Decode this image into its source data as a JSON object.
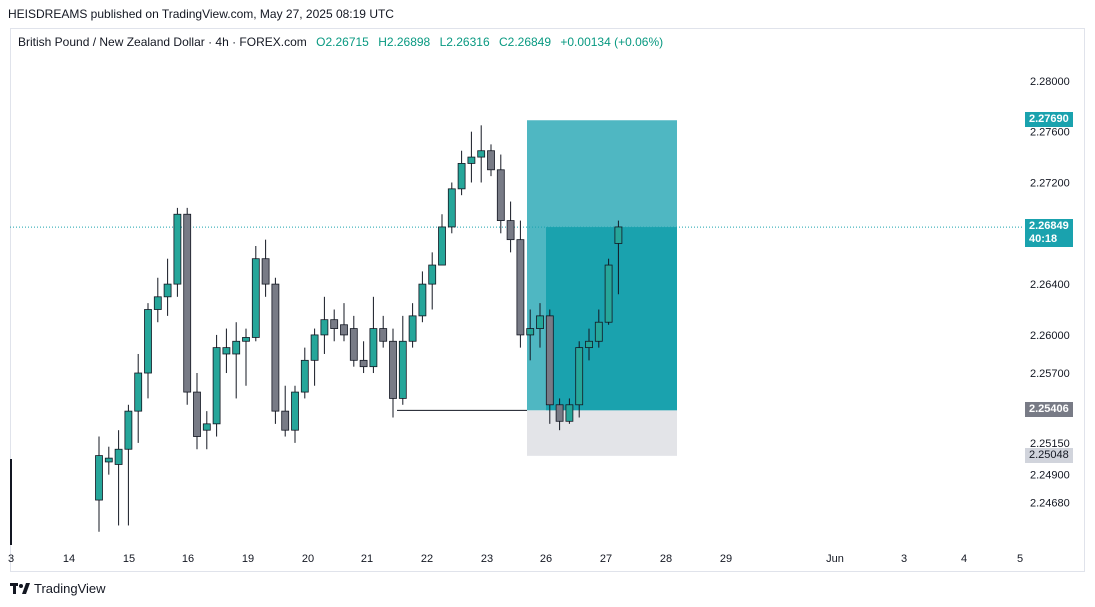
{
  "caption": "HEISDREAMS published on TradingView.com, May 27, 2025 08:19 UTC",
  "legend": {
    "symbol": "British Pound / New Zealand Dollar · 4h · FOREX.com",
    "open": "O2.26715",
    "high": "H2.26898",
    "low": "L2.26316",
    "close": "C2.26849",
    "change": "+0.00134 (+0.06%)"
  },
  "footer": {
    "brand": "TradingView",
    "logo_icon": "tradingview-logo-icon"
  },
  "price_labels": {
    "target": "2.27690",
    "current": "2.26849",
    "countdown": "40:18",
    "entry": "2.25406",
    "stop": "2.25048"
  },
  "colors": {
    "up": "#26a69a",
    "down": "#787b86",
    "target_zone": "#4fb7c2",
    "target_zone_inner": "#1aa2ae",
    "stop_zone": "#e3e4e8",
    "label_teal": "#1aa2ae",
    "label_gray": "#787b86",
    "label_light": "#d1d4dc"
  },
  "chart_data": {
    "type": "candlestick",
    "title": "British Pound / New Zealand Dollar · 4h · FOREX.com",
    "ylim": [
      2.2448,
      2.2818
    ],
    "yticks": [
      "2.28000",
      "2.27600",
      "2.27200",
      "2.26800",
      "2.26400",
      "2.26000",
      "2.25700",
      "2.25400",
      "2.25150",
      "2.24900",
      "2.24680"
    ],
    "xticks": [
      "3",
      "14",
      "15",
      "16",
      "19",
      "20",
      "21",
      "22",
      "23",
      "26",
      "27",
      "28",
      "29",
      "Jun",
      "3",
      "4",
      "5"
    ],
    "grid": false,
    "candles": [
      {
        "o": 2.247,
        "h": 2.252,
        "l": 2.2445,
        "c": 2.2505
      },
      {
        "o": 2.25,
        "h": 2.2512,
        "l": 2.249,
        "c": 2.2503
      },
      {
        "o": 2.2498,
        "h": 2.2525,
        "l": 2.245,
        "c": 2.251
      },
      {
        "o": 2.251,
        "h": 2.2545,
        "l": 2.245,
        "c": 2.254
      },
      {
        "o": 2.254,
        "h": 2.2585,
        "l": 2.2515,
        "c": 2.257
      },
      {
        "o": 2.257,
        "h": 2.2625,
        "l": 2.255,
        "c": 2.262
      },
      {
        "o": 2.262,
        "h": 2.2645,
        "l": 2.261,
        "c": 2.263
      },
      {
        "o": 2.263,
        "h": 2.266,
        "l": 2.2615,
        "c": 2.264
      },
      {
        "o": 2.264,
        "h": 2.27,
        "l": 2.263,
        "c": 2.2695
      },
      {
        "o": 2.2695,
        "h": 2.27,
        "l": 2.2545,
        "c": 2.2555
      },
      {
        "o": 2.2555,
        "h": 2.257,
        "l": 2.251,
        "c": 2.252
      },
      {
        "o": 2.2525,
        "h": 2.254,
        "l": 2.251,
        "c": 2.253
      },
      {
        "o": 2.253,
        "h": 2.26,
        "l": 2.252,
        "c": 2.259
      },
      {
        "o": 2.2585,
        "h": 2.2605,
        "l": 2.257,
        "c": 2.259
      },
      {
        "o": 2.2585,
        "h": 2.261,
        "l": 2.255,
        "c": 2.2595
      },
      {
        "o": 2.2595,
        "h": 2.2605,
        "l": 2.256,
        "c": 2.2598
      },
      {
        "o": 2.2598,
        "h": 2.267,
        "l": 2.2595,
        "c": 2.266
      },
      {
        "o": 2.266,
        "h": 2.2675,
        "l": 2.263,
        "c": 2.264
      },
      {
        "o": 2.264,
        "h": 2.2645,
        "l": 2.253,
        "c": 2.254
      },
      {
        "o": 2.254,
        "h": 2.256,
        "l": 2.252,
        "c": 2.2525
      },
      {
        "o": 2.2525,
        "h": 2.256,
        "l": 2.2515,
        "c": 2.2555
      },
      {
        "o": 2.2555,
        "h": 2.259,
        "l": 2.255,
        "c": 2.258
      },
      {
        "o": 2.258,
        "h": 2.2605,
        "l": 2.256,
        "c": 2.26
      },
      {
        "o": 2.26,
        "h": 2.263,
        "l": 2.2585,
        "c": 2.2612
      },
      {
        "o": 2.2612,
        "h": 2.262,
        "l": 2.2595,
        "c": 2.2605
      },
      {
        "o": 2.2608,
        "h": 2.2625,
        "l": 2.2595,
        "c": 2.26
      },
      {
        "o": 2.2605,
        "h": 2.2615,
        "l": 2.2575,
        "c": 2.258
      },
      {
        "o": 2.258,
        "h": 2.2595,
        "l": 2.257,
        "c": 2.2575
      },
      {
        "o": 2.2575,
        "h": 2.263,
        "l": 2.257,
        "c": 2.2605
      },
      {
        "o": 2.2605,
        "h": 2.2615,
        "l": 2.259,
        "c": 2.2595
      },
      {
        "o": 2.2595,
        "h": 2.2605,
        "l": 2.2535,
        "c": 2.255
      },
      {
        "o": 2.255,
        "h": 2.2615,
        "l": 2.2545,
        "c": 2.2595
      },
      {
        "o": 2.2595,
        "h": 2.2625,
        "l": 2.259,
        "c": 2.2615
      },
      {
        "o": 2.2615,
        "h": 2.265,
        "l": 2.261,
        "c": 2.264
      },
      {
        "o": 2.264,
        "h": 2.2665,
        "l": 2.262,
        "c": 2.2655
      },
      {
        "o": 2.2655,
        "h": 2.2695,
        "l": 2.2655,
        "c": 2.2685
      },
      {
        "o": 2.2685,
        "h": 2.272,
        "l": 2.268,
        "c": 2.2715
      },
      {
        "o": 2.2715,
        "h": 2.2745,
        "l": 2.271,
        "c": 2.2735
      },
      {
        "o": 2.2735,
        "h": 2.276,
        "l": 2.272,
        "c": 2.274
      },
      {
        "o": 2.274,
        "h": 2.2765,
        "l": 2.272,
        "c": 2.2745
      },
      {
        "o": 2.2745,
        "h": 2.275,
        "l": 2.2725,
        "c": 2.273
      },
      {
        "o": 2.273,
        "h": 2.2742,
        "l": 2.268,
        "c": 2.269
      },
      {
        "o": 2.269,
        "h": 2.2705,
        "l": 2.2665,
        "c": 2.2675
      },
      {
        "o": 2.2675,
        "h": 2.269,
        "l": 2.259,
        "c": 2.26
      },
      {
        "o": 2.26,
        "h": 2.262,
        "l": 2.258,
        "c": 2.2605
      },
      {
        "o": 2.2605,
        "h": 2.2625,
        "l": 2.259,
        "c": 2.2615
      },
      {
        "o": 2.2615,
        "h": 2.262,
        "l": 2.253,
        "c": 2.2545
      },
      {
        "o": 2.2545,
        "h": 2.255,
        "l": 2.2525,
        "c": 2.2532
      },
      {
        "o": 2.2532,
        "h": 2.255,
        "l": 2.253,
        "c": 2.2545
      },
      {
        "o": 2.2545,
        "h": 2.2595,
        "l": 2.2535,
        "c": 2.259
      },
      {
        "o": 2.259,
        "h": 2.2605,
        "l": 2.258,
        "c": 2.2595
      },
      {
        "o": 2.2595,
        "h": 2.262,
        "l": 2.259,
        "c": 2.261
      },
      {
        "o": 2.261,
        "h": 2.266,
        "l": 2.2608,
        "c": 2.2655
      },
      {
        "o": 2.2672,
        "h": 2.269,
        "l": 2.2632,
        "c": 2.2685
      }
    ],
    "position": {
      "entry": 2.25406,
      "target": 2.2769,
      "stop": 2.25048,
      "current": 2.26849
    },
    "level_line": 2.25406
  }
}
